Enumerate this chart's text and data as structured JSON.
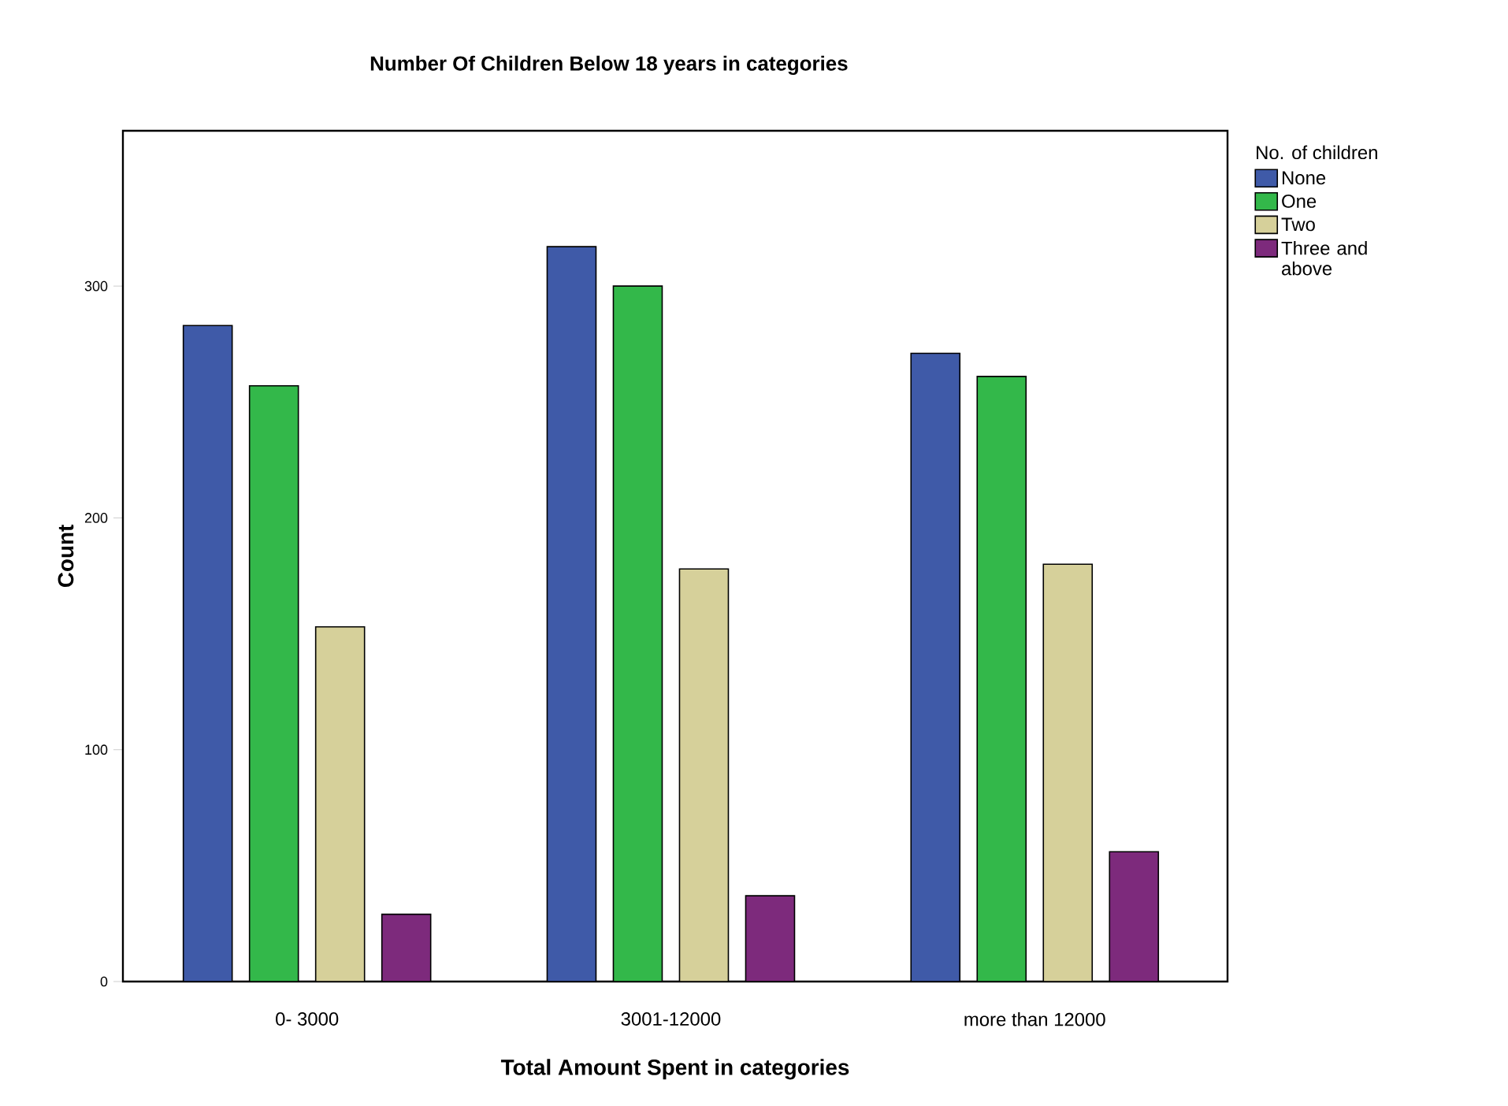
{
  "chart_data": {
    "type": "bar",
    "title": "Number Of Children Below 18 years in categories",
    "xlabel": "Total Amount Spent in categories",
    "ylabel": "Count",
    "legend_title": "No. of children",
    "categories": [
      "0- 3000",
      "3001-12000",
      "more than 12000"
    ],
    "series": [
      {
        "name": "None",
        "color": "#3f5aa8",
        "values": [
          283,
          317,
          271
        ]
      },
      {
        "name": "One",
        "color": "#33b84a",
        "values": [
          257,
          300,
          261
        ]
      },
      {
        "name": "Two",
        "color": "#d6d09a",
        "values": [
          153,
          178,
          180
        ]
      },
      {
        "name": "Three and above",
        "color": "#7d2a7c",
        "values": [
          29,
          37,
          56
        ]
      }
    ],
    "ylim": [
      0,
      367
    ],
    "yticks": [
      0,
      100,
      200,
      300
    ],
    "grid": false,
    "legend": "right"
  }
}
